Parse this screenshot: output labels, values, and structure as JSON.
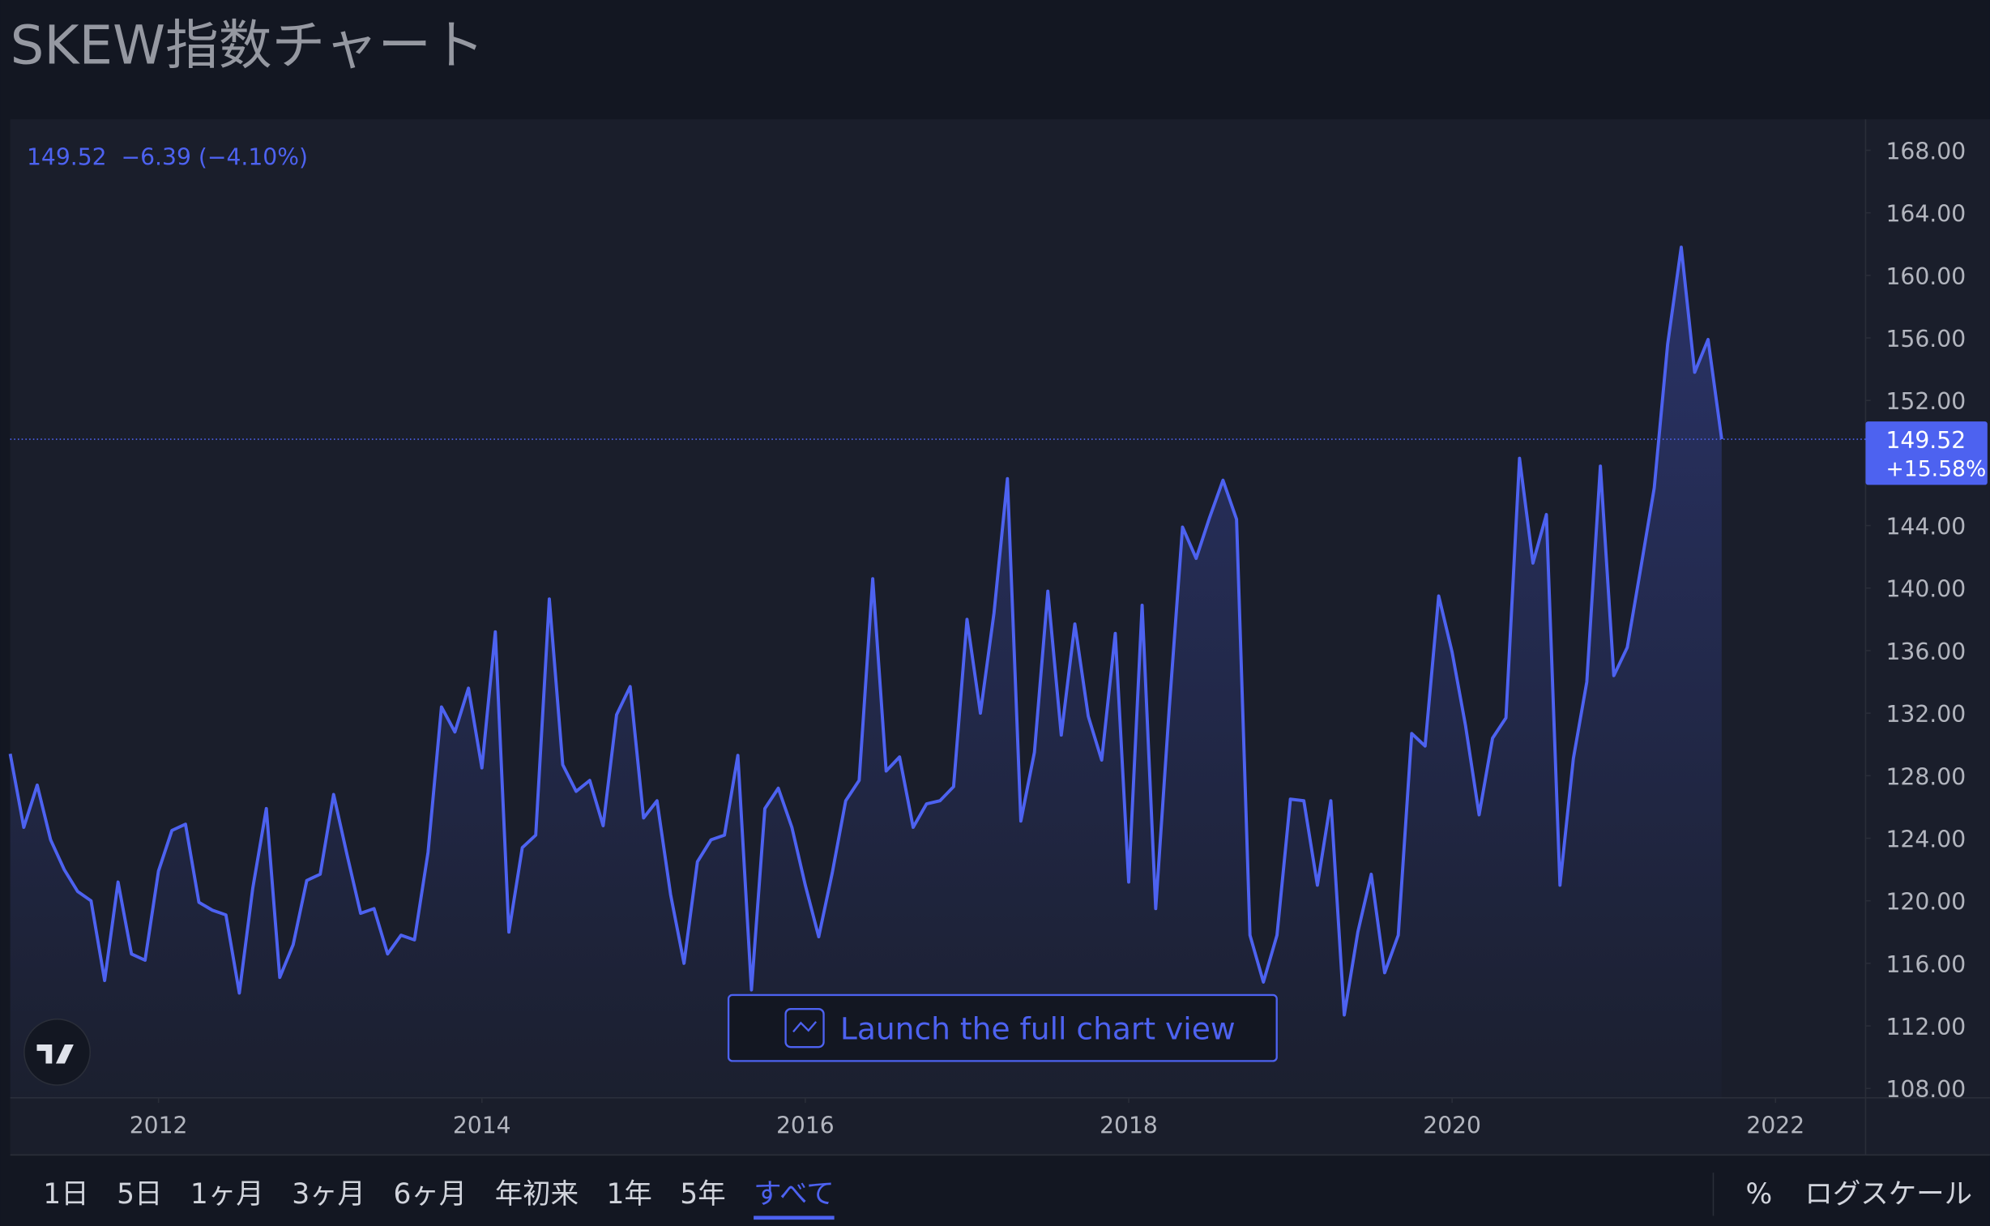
{
  "header": {
    "title": "SKEW指数チャート"
  },
  "chart_data": {
    "type": "area",
    "legend_text": "149.52  −6.39 (−4.10%)",
    "color": "#4d62f0",
    "last_value_label": "149.52",
    "last_change_label": "+15.58%",
    "log_scale": false,
    "grid": false,
    "x": [
      2011.083,
      2011.167,
      2011.25,
      2011.333,
      2011.417,
      2011.5,
      2011.583,
      2011.667,
      2011.75,
      2011.833,
      2011.917,
      2012,
      2012.083,
      2012.167,
      2012.25,
      2012.333,
      2012.417,
      2012.5,
      2012.583,
      2012.667,
      2012.75,
      2012.833,
      2012.917,
      2013,
      2013.083,
      2013.167,
      2013.25,
      2013.333,
      2013.417,
      2013.5,
      2013.583,
      2013.667,
      2013.75,
      2013.833,
      2013.917,
      2014,
      2014.083,
      2014.167,
      2014.25,
      2014.333,
      2014.417,
      2014.5,
      2014.583,
      2014.667,
      2014.75,
      2014.833,
      2014.917,
      2015,
      2015.083,
      2015.167,
      2015.25,
      2015.333,
      2015.417,
      2015.5,
      2015.583,
      2015.667,
      2015.75,
      2015.833,
      2015.917,
      2016,
      2016.083,
      2016.167,
      2016.25,
      2016.333,
      2016.417,
      2016.5,
      2016.583,
      2016.667,
      2016.75,
      2016.833,
      2016.917,
      2017,
      2017.083,
      2017.167,
      2017.25,
      2017.333,
      2017.417,
      2017.5,
      2017.583,
      2017.667,
      2017.75,
      2017.833,
      2017.917,
      2018,
      2018.083,
      2018.167,
      2018.25,
      2018.333,
      2018.417,
      2018.5,
      2018.583,
      2018.667,
      2018.75,
      2018.833,
      2018.917,
      2019,
      2019.083,
      2019.167,
      2019.25,
      2019.333,
      2019.417,
      2019.5,
      2019.583,
      2019.667,
      2019.75,
      2019.833,
      2019.917,
      2020,
      2020.083,
      2020.167,
      2020.25,
      2020.333,
      2020.417,
      2020.5,
      2020.583,
      2020.667,
      2020.75,
      2020.833,
      2020.917,
      2021,
      2021.083,
      2021.167,
      2021.25,
      2021.333,
      2021.417,
      2021.5,
      2021.583,
      2021.667
    ],
    "values": [
      129.4,
      124.7,
      127.4,
      123.9,
      122.0,
      120.6,
      120.0,
      114.9,
      121.2,
      116.6,
      116.2,
      121.9,
      124.5,
      124.9,
      119.9,
      119.4,
      119.1,
      114.1,
      120.8,
      125.9,
      115.1,
      117.2,
      121.3,
      121.7,
      126.8,
      122.9,
      119.2,
      119.5,
      116.6,
      117.8,
      117.5,
      123.1,
      132.4,
      130.8,
      133.6,
      128.5,
      137.2,
      118.0,
      123.4,
      124.2,
      139.3,
      128.7,
      127.0,
      127.7,
      124.8,
      131.9,
      133.7,
      125.3,
      126.4,
      120.4,
      116.0,
      122.5,
      123.9,
      124.2,
      129.3,
      114.3,
      125.9,
      127.2,
      124.7,
      121.0,
      117.7,
      121.8,
      126.4,
      127.7,
      140.6,
      128.3,
      129.2,
      124.7,
      126.2,
      126.4,
      127.3,
      138.0,
      132.0,
      138.4,
      147.0,
      125.1,
      129.5,
      139.8,
      130.6,
      137.7,
      131.8,
      129.0,
      137.1,
      121.2,
      138.9,
      119.5,
      132.2,
      143.9,
      141.9,
      144.5,
      146.9,
      144.4,
      117.8,
      114.8,
      117.8,
      126.5,
      126.4,
      121.0,
      126.4,
      112.7,
      118.0,
      121.7,
      115.4,
      117.8,
      130.7,
      129.9,
      139.5,
      135.9,
      131.2,
      125.5,
      130.4,
      131.7,
      148.3,
      141.6,
      144.7,
      121.0,
      129.1,
      134.0,
      147.8,
      134.4,
      136.2,
      141.3,
      146.4,
      155.6,
      161.8,
      153.8,
      155.9,
      149.52
    ],
    "xlim": [
      2011.083,
      2022.557
    ],
    "ylim": [
      107.4,
      169.9
    ],
    "xticks": [
      2012,
      2014,
      2016,
      2018,
      2020,
      2022
    ],
    "yticks": [
      {
        "value": 108,
        "label": "108.00"
      },
      {
        "value": 112,
        "label": "112.00"
      },
      {
        "value": 116,
        "label": "116.00"
      },
      {
        "value": 120,
        "label": "120.00"
      },
      {
        "value": 124,
        "label": "124.00"
      },
      {
        "value": 128,
        "label": "128.00"
      },
      {
        "value": 132,
        "label": "132.00"
      },
      {
        "value": 136,
        "label": "136.00"
      },
      {
        "value": 140,
        "label": "140.00"
      },
      {
        "value": 144,
        "label": "144.00"
      },
      {
        "value": 148,
        "label": "148.00"
      },
      {
        "value": 152,
        "label": "152.00"
      },
      {
        "value": 156,
        "label": "156.00"
      },
      {
        "value": 160,
        "label": "160.00"
      },
      {
        "value": 164,
        "label": "164.00"
      },
      {
        "value": 168,
        "label": "168.00"
      }
    ],
    "button": "Launch the full chart view"
  },
  "controls": {
    "ranges": [
      "1日",
      "5日",
      "1ヶ月",
      "3ヶ月",
      "6ヶ月",
      "年初来",
      "1年",
      "5年",
      "すべて"
    ],
    "active_range": 8,
    "percent": "%",
    "log_scale": "ログスケール"
  }
}
